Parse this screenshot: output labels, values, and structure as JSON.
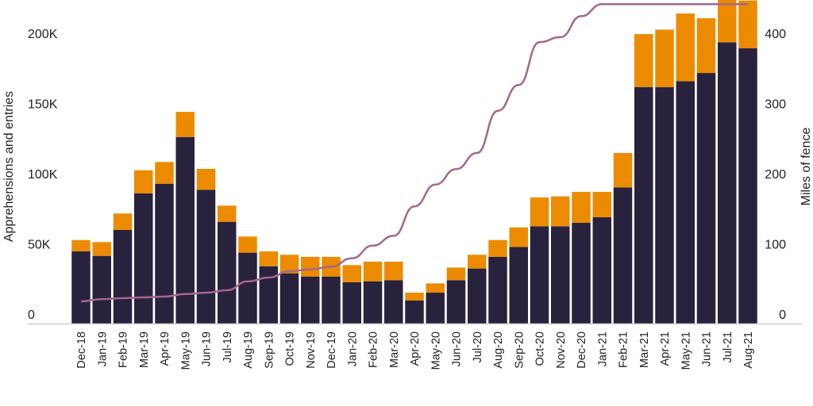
{
  "chart_data": {
    "type": "bar",
    "stacked": true,
    "title": "",
    "ylabel": "Apprehensions and entries",
    "y2label": "Miles of fence",
    "ylim": [
      0,
      230000
    ],
    "y2lim": [
      0,
      460
    ],
    "yticks": [
      {
        "value": 0,
        "label": "0"
      },
      {
        "value": 50000,
        "label": "50K"
      },
      {
        "value": 100000,
        "label": "100K"
      },
      {
        "value": 150000,
        "label": "150K"
      },
      {
        "value": 200000,
        "label": "200K"
      }
    ],
    "y2ticks": [
      {
        "value": 0,
        "label": "0"
      },
      {
        "value": 100,
        "label": "100"
      },
      {
        "value": 200,
        "label": "200"
      },
      {
        "value": 300,
        "label": "300"
      },
      {
        "value": 400,
        "label": "400"
      }
    ],
    "grid": false,
    "categories": [
      "Dec-18",
      "Jan-19",
      "Feb-19",
      "Mar-19",
      "Apr-19",
      "May-19",
      "Jun-19",
      "Jul-19",
      "Aug-19",
      "Sep-19",
      "Oct-19",
      "Nov-19",
      "Dec-19",
      "Jan-20",
      "Feb-20",
      "Mar-20",
      "Apr-20",
      "May-20",
      "Jun-20",
      "Jul-20",
      "Aug-20",
      "Sep-20",
      "Oct-20",
      "Nov-20",
      "Dec-20",
      "Jan-21",
      "Feb-21",
      "Mar-21",
      "Apr-21",
      "May-21",
      "Jun-21",
      "Jul-21",
      "Aug-21"
    ],
    "series": [
      {
        "type": "bar",
        "axis": "left",
        "color": "#28223d",
        "values": [
          51400,
          48200,
          66700,
          92800,
          99600,
          132900,
          95300,
          72500,
          50500,
          40800,
          35800,
          33500,
          33500,
          29400,
          30100,
          30900,
          16400,
          22000,
          30900,
          39200,
          47500,
          54600,
          69300,
          69300,
          71800,
          75700,
          97000,
          168500,
          168500,
          172700,
          178500,
          200400,
          196200
        ]
      },
      {
        "type": "bar",
        "axis": "left",
        "color": "#ec8b00",
        "values": [
          8100,
          9800,
          11700,
          16400,
          15500,
          17900,
          14900,
          11500,
          11500,
          10600,
          13200,
          14000,
          14000,
          12200,
          14000,
          13200,
          5600,
          6600,
          9000,
          9800,
          12000,
          13900,
          20500,
          21300,
          22000,
          18100,
          24500,
          37700,
          40900,
          48200,
          39000,
          40000,
          34000
        ]
      },
      {
        "type": "line",
        "axis": "right",
        "color": "#a3688c",
        "values": [
          31.6,
          34.7,
          36.2,
          37.3,
          38.4,
          42,
          44,
          47.5,
          60,
          65.5,
          74.6,
          77,
          81,
          93,
          111,
          125,
          167,
          198,
          220,
          243,
          303,
          340,
          401,
          408,
          438,
          455,
          455,
          455,
          455,
          455,
          455,
          455,
          455
        ]
      }
    ]
  }
}
